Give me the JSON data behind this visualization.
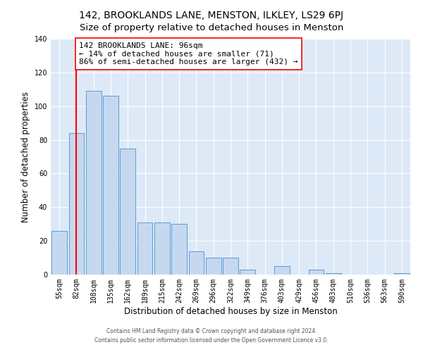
{
  "title": "142, BROOKLANDS LANE, MENSTON, ILKLEY, LS29 6PJ",
  "subtitle": "Size of property relative to detached houses in Menston",
  "xlabel": "Distribution of detached houses by size in Menston",
  "ylabel": "Number of detached properties",
  "bar_labels": [
    "55sqm",
    "82sqm",
    "108sqm",
    "135sqm",
    "162sqm",
    "189sqm",
    "215sqm",
    "242sqm",
    "269sqm",
    "296sqm",
    "322sqm",
    "349sqm",
    "376sqm",
    "403sqm",
    "429sqm",
    "456sqm",
    "483sqm",
    "510sqm",
    "536sqm",
    "563sqm",
    "590sqm"
  ],
  "bar_values": [
    26,
    84,
    109,
    106,
    75,
    31,
    31,
    30,
    14,
    10,
    10,
    3,
    0,
    5,
    0,
    3,
    1,
    0,
    0,
    0,
    1
  ],
  "bar_color": "#c5d8f0",
  "bar_edge_color": "#5b9bd5",
  "red_line_x": 1.0,
  "annotation_title": "142 BROOKLANDS LANE: 96sqm",
  "annotation_line1": "← 14% of detached houses are smaller (71)",
  "annotation_line2": "86% of semi-detached houses are larger (432) →",
  "ylim": [
    0,
    140
  ],
  "yticks": [
    0,
    20,
    40,
    60,
    80,
    100,
    120,
    140
  ],
  "footer1": "Contains HM Land Registry data © Crown copyright and database right 2024.",
  "footer2": "Contains public sector information licensed under the Open Government Licence v3.0.",
  "bg_color": "#dde9f7",
  "title_fontsize": 10,
  "subtitle_fontsize": 9.5,
  "axis_label_fontsize": 8.5,
  "tick_fontsize": 7,
  "annotation_fontsize": 8
}
